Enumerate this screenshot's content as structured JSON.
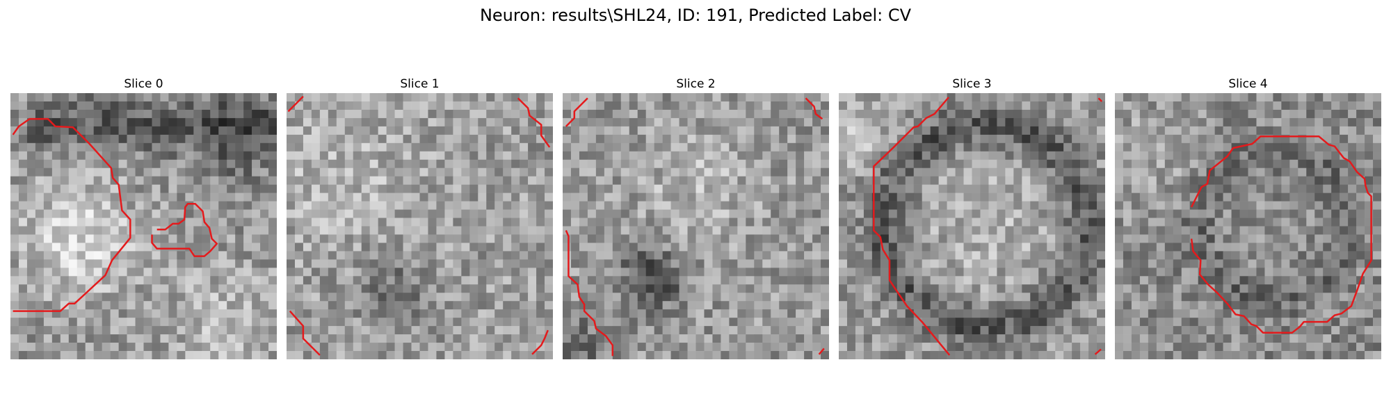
{
  "figure": {
    "title": "Neuron: results\\SHL24, ID: 191, Predicted Label: CV",
    "contour_color": "#e41a1c"
  },
  "slices": [
    {
      "title": "Slice 0"
    },
    {
      "title": "Slice 1"
    },
    {
      "title": "Slice 2"
    },
    {
      "title": "Slice 3"
    },
    {
      "title": "Slice 4"
    }
  ]
}
